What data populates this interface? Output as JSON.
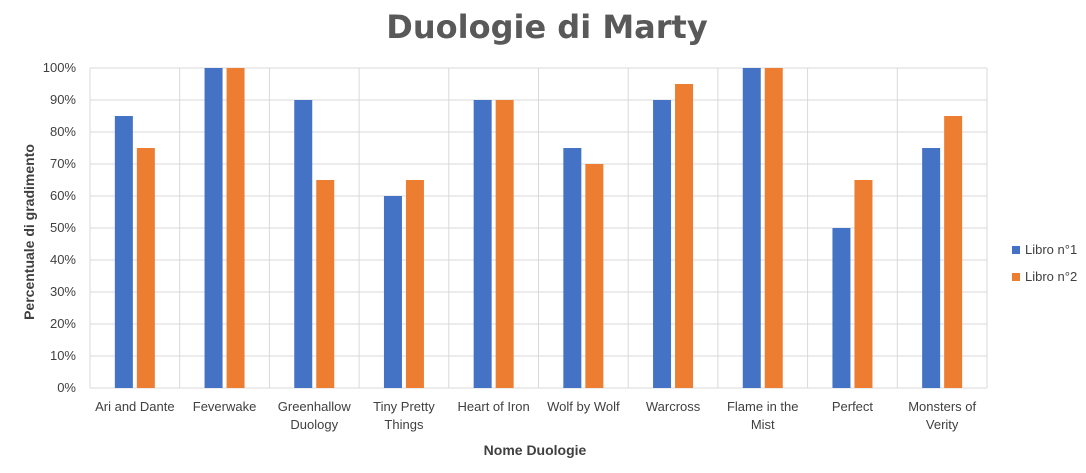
{
  "chart_data": {
    "type": "bar",
    "title": "Duologie di Marty",
    "xlabel": "Nome Duologie",
    "ylabel": "Percentuale di gradimento",
    "ylim": [
      0,
      100
    ],
    "yticks": [
      "0%",
      "10%",
      "20%",
      "30%",
      "40%",
      "50%",
      "60%",
      "70%",
      "80%",
      "90%",
      "100%"
    ],
    "categories": [
      [
        "Ari and Dante"
      ],
      [
        "Feverwake"
      ],
      [
        "Greenhallow",
        "Duology"
      ],
      [
        "Tiny Pretty",
        "Things"
      ],
      [
        "Heart of Iron"
      ],
      [
        "Wolf by Wolf"
      ],
      [
        "Warcross"
      ],
      [
        "Flame in the",
        "Mist"
      ],
      [
        "Perfect"
      ],
      [
        "Monsters of",
        "Verity"
      ]
    ],
    "series": [
      {
        "name": "Libro n°1",
        "color": "#4472C4",
        "values": [
          85,
          100,
          90,
          60,
          90,
          75,
          90,
          100,
          50,
          75
        ]
      },
      {
        "name": "Libro n°2",
        "color": "#ED7D31",
        "values": [
          75,
          100,
          65,
          65,
          90,
          70,
          95,
          100,
          65,
          85
        ]
      }
    ],
    "grid": true,
    "legend": "right"
  }
}
